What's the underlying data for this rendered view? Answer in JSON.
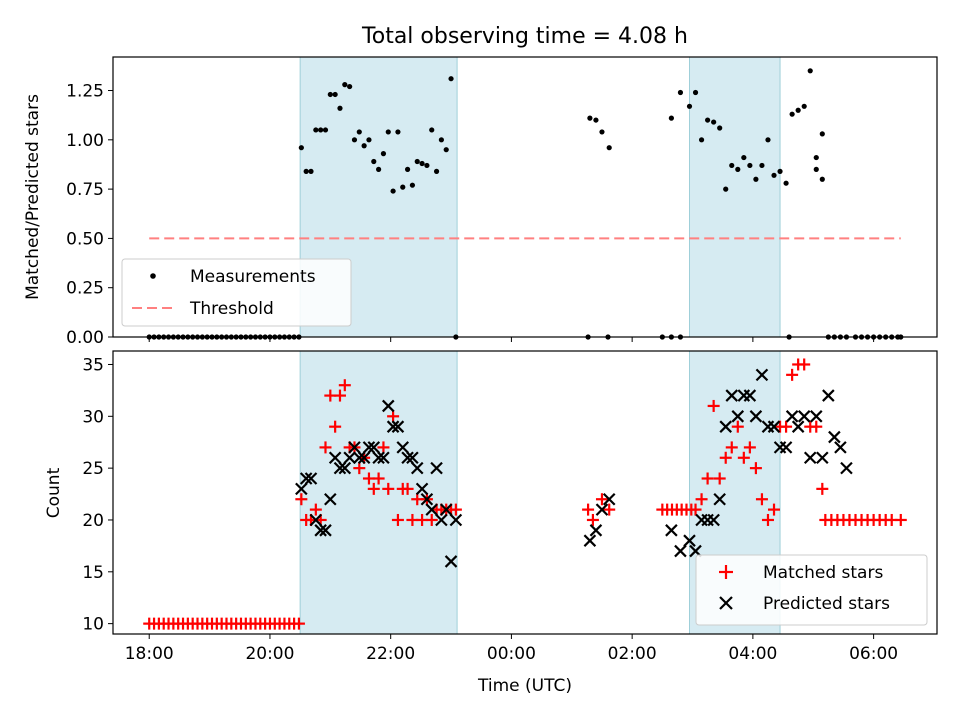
{
  "chart_data": [
    {
      "type": "scatter",
      "title": "Total observing time = 4.08 h",
      "xlabel": "",
      "ylabel": "Matched/Predicted stars",
      "ylim": [
        0,
        1.42
      ],
      "yticks": [
        "0.00",
        "0.25",
        "0.50",
        "0.75",
        "1.00",
        "1.25"
      ],
      "xlim": [
        17.4,
        31.05
      ],
      "shaded_intervals": [
        [
          20.5,
          23.1
        ],
        [
          26.95,
          28.45
        ]
      ],
      "legend": {
        "position": "lower-left",
        "entries": [
          "Measurements",
          "Threshold"
        ]
      },
      "series": [
        {
          "name": "Measurements",
          "marker": "dot",
          "color": "#000000",
          "x": [
            20.52,
            20.6,
            20.68,
            20.76,
            20.84,
            20.92,
            21.0,
            21.08,
            21.16,
            21.24,
            21.32,
            21.4,
            21.48,
            21.56,
            21.64,
            21.72,
            21.8,
            21.88,
            21.96,
            22.04,
            22.12,
            22.2,
            22.28,
            22.36,
            22.44,
            22.52,
            22.6,
            22.68,
            22.76,
            22.84,
            22.92,
            23.0,
            23.08,
            25.3,
            25.4,
            25.5,
            25.62,
            26.65,
            26.8,
            26.95,
            27.05,
            27.15,
            27.25,
            27.35,
            27.45,
            27.55,
            27.65,
            27.75,
            27.85,
            27.95,
            28.05,
            28.15,
            28.25,
            28.35,
            28.45,
            28.55,
            28.65,
            28.75,
            28.85,
            28.95,
            29.05,
            29.15
          ],
          "y": [
            0.96,
            0.84,
            0.84,
            1.05,
            1.05,
            1.05,
            1.23,
            1.23,
            1.16,
            1.28,
            1.27,
            1.0,
            1.04,
            0.97,
            1.0,
            0.89,
            0.85,
            0.93,
            1.04,
            0.74,
            1.04,
            0.76,
            0.85,
            0.77,
            0.89,
            0.88,
            0.87,
            1.05,
            0.84,
            1.0,
            0.95,
            1.31,
            0.0,
            1.11,
            1.1,
            1.04,
            0.96,
            1.11,
            1.24,
            1.17,
            1.24,
            1.0,
            1.1,
            1.09,
            1.06,
            0.75,
            0.87,
            0.85,
            0.91,
            0.87,
            0.8,
            0.87,
            1.0,
            0.82,
            0.84,
            0.78,
            1.13,
            1.15,
            1.17,
            1.35,
            0.91,
            1.03
          ]
        },
        {
          "name": "",
          "marker": "dot",
          "color": "#000000",
          "x": [
            18.0,
            18.08,
            18.16,
            18.24,
            18.32,
            18.4,
            18.48,
            18.56,
            18.64,
            18.72,
            18.8,
            18.88,
            18.96,
            19.04,
            19.12,
            19.2,
            19.28,
            19.36,
            19.44,
            19.52,
            19.6,
            19.68,
            19.76,
            19.84,
            19.92,
            20.0,
            20.08,
            20.16,
            20.24,
            20.32,
            20.4,
            20.48,
            25.27,
            25.6,
            26.5,
            26.65,
            26.8,
            28.6,
            29.25,
            29.35,
            29.45,
            29.55,
            29.7,
            29.8,
            29.9,
            30.0,
            30.1,
            30.2,
            30.3,
            30.4,
            30.45
          ],
          "y": [
            0,
            0,
            0,
            0,
            0,
            0,
            0,
            0,
            0,
            0,
            0,
            0,
            0,
            0,
            0,
            0,
            0,
            0,
            0,
            0,
            0,
            0,
            0,
            0,
            0,
            0,
            0,
            0,
            0,
            0,
            0,
            0,
            0,
            0,
            0,
            0,
            0,
            0,
            0,
            0,
            0,
            0,
            0,
            0,
            0,
            0,
            0,
            0,
            0,
            0,
            0
          ]
        },
        {
          "name": "Threshold",
          "marker": "dashed-line",
          "color": "#ff8080",
          "x": [
            18.0,
            30.45
          ],
          "y": [
            0.5,
            0.5
          ]
        }
      ],
      "extra_points": {
        "x": [
          29.05,
          29.15
        ],
        "y": [
          0.85,
          0.8
        ]
      }
    },
    {
      "type": "scatter",
      "title": "",
      "xlabel": "Time (UTC)",
      "ylabel": "Count",
      "ylim": [
        9,
        36.3
      ],
      "yticks": [
        "10",
        "15",
        "20",
        "25",
        "30",
        "35"
      ],
      "xlim": [
        17.4,
        31.05
      ],
      "xticks": [
        {
          "value": 18,
          "label": "18:00"
        },
        {
          "value": 20,
          "label": "20:00"
        },
        {
          "value": 22,
          "label": "22:00"
        },
        {
          "value": 24,
          "label": "00:00"
        },
        {
          "value": 26,
          "label": "02:00"
        },
        {
          "value": 28,
          "label": "04:00"
        },
        {
          "value": 30,
          "label": "06:00"
        }
      ],
      "shaded_intervals": [
        [
          20.5,
          23.1
        ],
        [
          26.95,
          28.45
        ]
      ],
      "legend": {
        "position": "lower-right",
        "entries": [
          "Matched stars",
          "Predicted stars"
        ]
      },
      "series": [
        {
          "name": "Matched stars",
          "marker": "plus",
          "color": "#ff0000",
          "x": [
            18.0,
            18.08,
            18.16,
            18.24,
            18.32,
            18.4,
            18.48,
            18.56,
            18.64,
            18.72,
            18.8,
            18.88,
            18.96,
            19.04,
            19.12,
            19.2,
            19.28,
            19.36,
            19.44,
            19.52,
            19.6,
            19.68,
            19.76,
            19.84,
            19.92,
            20.0,
            20.08,
            20.16,
            20.24,
            20.32,
            20.4,
            20.48,
            20.52,
            20.6,
            20.68,
            20.76,
            20.84,
            20.92,
            21.0,
            21.08,
            21.16,
            21.24,
            21.32,
            21.4,
            21.48,
            21.56,
            21.64,
            21.72,
            21.8,
            21.88,
            21.96,
            22.04,
            22.12,
            22.2,
            22.28,
            22.36,
            22.44,
            22.52,
            22.6,
            22.68,
            22.76,
            22.84,
            22.92,
            23.0,
            23.08,
            25.27,
            25.35,
            25.5,
            25.62,
            26.5,
            26.58,
            26.66,
            26.74,
            26.82,
            26.9,
            26.98,
            27.05,
            27.15,
            27.25,
            27.35,
            27.45,
            27.55,
            27.65,
            27.75,
            27.85,
            27.95,
            28.05,
            28.15,
            28.25,
            28.35,
            28.45,
            28.55,
            28.65,
            28.75,
            28.85,
            28.95,
            29.05,
            29.15,
            29.2,
            29.3,
            29.4,
            29.5,
            29.6,
            29.7,
            29.8,
            29.9,
            30.0,
            30.1,
            30.2,
            30.3,
            30.45
          ],
          "y": [
            10,
            10,
            10,
            10,
            10,
            10,
            10,
            10,
            10,
            10,
            10,
            10,
            10,
            10,
            10,
            10,
            10,
            10,
            10,
            10,
            10,
            10,
            10,
            10,
            10,
            10,
            10,
            10,
            10,
            10,
            10,
            10,
            22,
            20,
            20,
            21,
            20,
            27,
            32,
            29,
            32,
            33,
            27,
            27,
            25,
            26,
            24,
            23,
            24,
            27,
            23,
            30,
            20,
            23,
            23,
            20,
            22,
            20,
            22,
            20,
            21,
            21,
            21,
            21,
            21,
            21,
            20,
            22,
            21,
            21,
            21,
            21,
            21,
            21,
            21,
            21,
            21,
            22,
            24,
            31,
            24,
            26,
            27,
            29,
            26,
            27,
            25,
            22,
            20,
            21,
            29,
            29,
            34,
            35,
            35,
            29,
            29,
            23,
            20,
            20,
            20,
            20,
            20,
            20,
            20,
            20,
            20,
            20,
            20,
            20,
            20
          ]
        },
        {
          "name": "Predicted stars",
          "marker": "cross",
          "color": "#000000",
          "x": [
            20.52,
            20.6,
            20.68,
            20.76,
            20.84,
            20.92,
            21.0,
            21.08,
            21.16,
            21.24,
            21.32,
            21.4,
            21.48,
            21.56,
            21.64,
            21.72,
            21.8,
            21.88,
            21.96,
            22.04,
            22.12,
            22.2,
            22.28,
            22.36,
            22.44,
            22.52,
            22.6,
            22.68,
            22.76,
            22.84,
            22.92,
            23.0,
            23.08,
            25.3,
            25.4,
            25.5,
            25.62,
            26.65,
            26.8,
            26.95,
            27.05,
            27.15,
            27.25,
            27.35,
            27.45,
            27.55,
            27.65,
            27.75,
            27.85,
            27.95,
            28.05,
            28.15,
            28.25,
            28.35,
            28.45,
            28.55,
            28.65,
            28.75,
            28.85,
            28.95,
            29.05,
            29.15
          ],
          "y": [
            23,
            24,
            24,
            20,
            19,
            19,
            22,
            26,
            25,
            25,
            26,
            27,
            26,
            26,
            27,
            27,
            26,
            26,
            31,
            29,
            29,
            27,
            26,
            26,
            25,
            23,
            22,
            21,
            25,
            20,
            21,
            16,
            20,
            18,
            19,
            21,
            22,
            19,
            17,
            18,
            17,
            20,
            20,
            20,
            22,
            29,
            32,
            30,
            32,
            32,
            30,
            34,
            29,
            29,
            27,
            27,
            30,
            29,
            30,
            26,
            30,
            26
          ],
          "extra": {
            "x": [
              29.25,
              29.35,
              29.45,
              29.55
            ],
            "y": [
              32,
              28,
              27,
              25
            ]
          }
        }
      ]
    }
  ]
}
